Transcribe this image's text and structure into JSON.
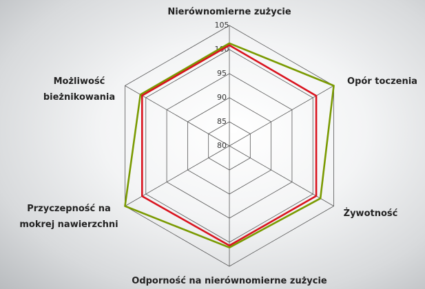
{
  "chart_data": {
    "type": "radar",
    "categories": [
      "Nierównomierne zużycie",
      "Opór toczenia",
      "Żywotność",
      "Odporność na nierównomierne zużycie",
      "Przyczepność na\nmokrej nawierzchni",
      "Możliwość\nbieżnikowania"
    ],
    "series": [
      {
        "color": "#7a9a01",
        "values": [
          101.3,
          105,
          101.8,
          101.1,
          105,
          101.3
        ]
      },
      {
        "color": "#d9131e",
        "values": [
          100.9,
          100.8,
          100.8,
          100.7,
          100.9,
          100.9
        ]
      }
    ],
    "ylim": [
      80,
      105
    ],
    "yticks": [
      80,
      85,
      90,
      95,
      100,
      105
    ],
    "grid": true
  }
}
